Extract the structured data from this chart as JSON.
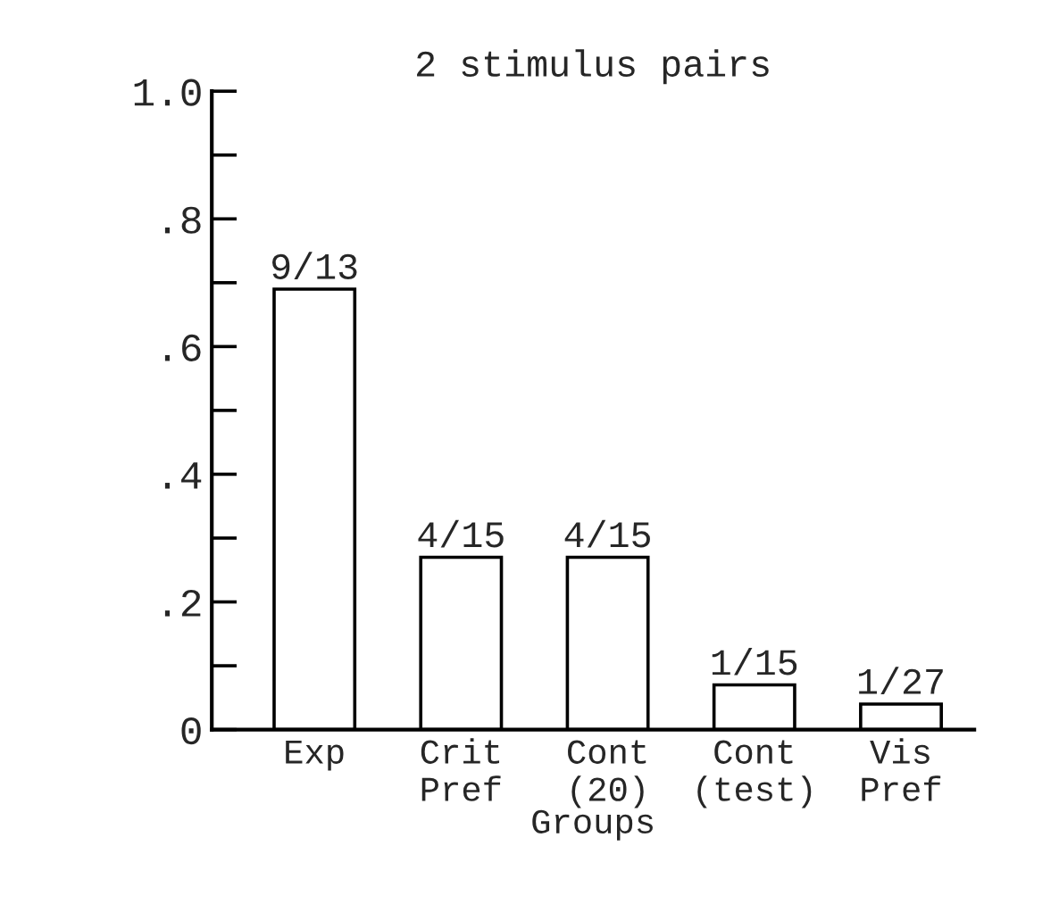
{
  "chart_data": {
    "type": "bar",
    "title": "2 stimulus pairs",
    "xlabel": "Groups",
    "categories": [
      "Exp",
      "Crit\nPref",
      "Cont\n(20)",
      "Cont\n(test)",
      "Vis\nPref"
    ],
    "values": [
      0.69,
      0.27,
      0.27,
      0.07,
      0.04
    ],
    "value_labels": [
      "9/13",
      "4/15",
      "4/15",
      "1/15",
      "1/27"
    ],
    "color": "#ffffff",
    "ylim": [
      0,
      1.0
    ],
    "yticks": [
      {
        "value": 0,
        "label": "0"
      },
      {
        "value": 0.1,
        "label": null
      },
      {
        "value": 0.2,
        "label": ".2"
      },
      {
        "value": 0.3,
        "label": null
      },
      {
        "value": 0.4,
        "label": ".4"
      },
      {
        "value": 0.5,
        "label": null
      },
      {
        "value": 0.6,
        "label": ".6"
      },
      {
        "value": 0.7,
        "label": null
      },
      {
        "value": 0.8,
        "label": ".8"
      },
      {
        "value": 0.9,
        "label": null
      },
      {
        "value": 1.0,
        "label": "1.0"
      }
    ],
    "grid": false
  }
}
